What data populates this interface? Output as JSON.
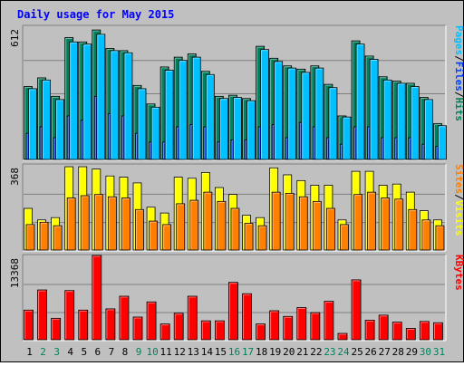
{
  "title": "Daily usage for May 2015",
  "colors": {
    "hits": "#00805c",
    "files": "#0040ff",
    "pages": "#00c0ff",
    "visits": "#ffff00",
    "sites": "#ff8000",
    "kbytes": "#ff0000",
    "weekend_day": "#00805c",
    "weekday": "#000000",
    "title_text": "#0000ff"
  },
  "chart_data": [
    {
      "type": "bar",
      "panel": "hits-files-pages",
      "ytick": "612",
      "ymax": 612,
      "legend": [
        {
          "label": "Hits",
          "color": "#00805c"
        },
        {
          "label": "Files",
          "color": "#0040ff"
        },
        {
          "label": "Pages",
          "color": "#00c0ff"
        }
      ],
      "legend_separator": "/",
      "series": [
        {
          "name": "Hits",
          "values": [
            335,
            375,
            290,
            560,
            540,
            595,
            510,
            500,
            340,
            255,
            425,
            470,
            485,
            405,
            290,
            295,
            280,
            520,
            465,
            430,
            415,
            430,
            345,
            200,
            545,
            475,
            380,
            360,
            350,
            285,
            165
          ]
        },
        {
          "name": "Files",
          "values": [
            120,
            150,
            100,
            200,
            180,
            290,
            210,
            200,
            120,
            80,
            80,
            150,
            160,
            150,
            80,
            90,
            90,
            150,
            160,
            100,
            170,
            150,
            100,
            70,
            150,
            150,
            100,
            100,
            100,
            70,
            60
          ]
        },
        {
          "name": "Pages",
          "values": [
            325,
            365,
            275,
            540,
            530,
            575,
            500,
            490,
            325,
            240,
            410,
            455,
            470,
            390,
            280,
            285,
            270,
            505,
            450,
            420,
            400,
            420,
            330,
            195,
            530,
            460,
            365,
            350,
            335,
            275,
            155
          ]
        }
      ]
    },
    {
      "type": "bar",
      "panel": "visits-sites",
      "ytick": "368",
      "ymax": 368,
      "legend": [
        {
          "label": "Visits",
          "color": "#ffff00"
        },
        {
          "label": "Sites",
          "color": "#ff8000"
        }
      ],
      "legend_separator": "/",
      "series": [
        {
          "name": "Visits",
          "values": [
            180,
            130,
            140,
            360,
            360,
            350,
            320,
            315,
            290,
            185,
            160,
            315,
            310,
            335,
            270,
            240,
            150,
            140,
            355,
            325,
            300,
            280,
            280,
            130,
            340,
            340,
            280,
            285,
            250,
            170,
            130
          ]
        },
        {
          "name": "Sites",
          "values": [
            110,
            120,
            105,
            225,
            235,
            240,
            230,
            225,
            175,
            125,
            110,
            200,
            215,
            250,
            210,
            180,
            115,
            105,
            250,
            245,
            230,
            210,
            180,
            110,
            240,
            250,
            225,
            220,
            175,
            130,
            105
          ]
        }
      ]
    },
    {
      "type": "bar",
      "panel": "kbytes",
      "ytick": "13368",
      "ymax": 13368,
      "legend": [
        {
          "label": "KBytes",
          "color": "#ff0000"
        }
      ],
      "series": [
        {
          "name": "KBytes",
          "values": [
            4700,
            7900,
            3400,
            7800,
            4700,
            13368,
            4900,
            6900,
            3600,
            6000,
            2500,
            4200,
            6900,
            3000,
            3000,
            9100,
            7300,
            2500,
            4600,
            3700,
            5100,
            4300,
            6100,
            1000,
            9500,
            3100,
            3900,
            2800,
            1800,
            2900,
            2700
          ]
        }
      ]
    }
  ],
  "days": [
    {
      "label": "1",
      "weekend": false
    },
    {
      "label": "2",
      "weekend": true
    },
    {
      "label": "3",
      "weekend": true
    },
    {
      "label": "4",
      "weekend": false
    },
    {
      "label": "5",
      "weekend": false
    },
    {
      "label": "6",
      "weekend": false
    },
    {
      "label": "7",
      "weekend": false
    },
    {
      "label": "8",
      "weekend": false
    },
    {
      "label": "9",
      "weekend": true
    },
    {
      "label": "10",
      "weekend": true
    },
    {
      "label": "11",
      "weekend": false
    },
    {
      "label": "12",
      "weekend": false
    },
    {
      "label": "13",
      "weekend": false
    },
    {
      "label": "14",
      "weekend": false
    },
    {
      "label": "15",
      "weekend": false
    },
    {
      "label": "16",
      "weekend": true
    },
    {
      "label": "17",
      "weekend": true
    },
    {
      "label": "18",
      "weekend": false
    },
    {
      "label": "19",
      "weekend": false
    },
    {
      "label": "20",
      "weekend": false
    },
    {
      "label": "21",
      "weekend": false
    },
    {
      "label": "22",
      "weekend": false
    },
    {
      "label": "23",
      "weekend": true
    },
    {
      "label": "24",
      "weekend": true
    },
    {
      "label": "25",
      "weekend": false
    },
    {
      "label": "26",
      "weekend": false
    },
    {
      "label": "27",
      "weekend": false
    },
    {
      "label": "28",
      "weekend": false
    },
    {
      "label": "29",
      "weekend": false
    },
    {
      "label": "30",
      "weekend": true
    },
    {
      "label": "31",
      "weekend": true
    }
  ]
}
